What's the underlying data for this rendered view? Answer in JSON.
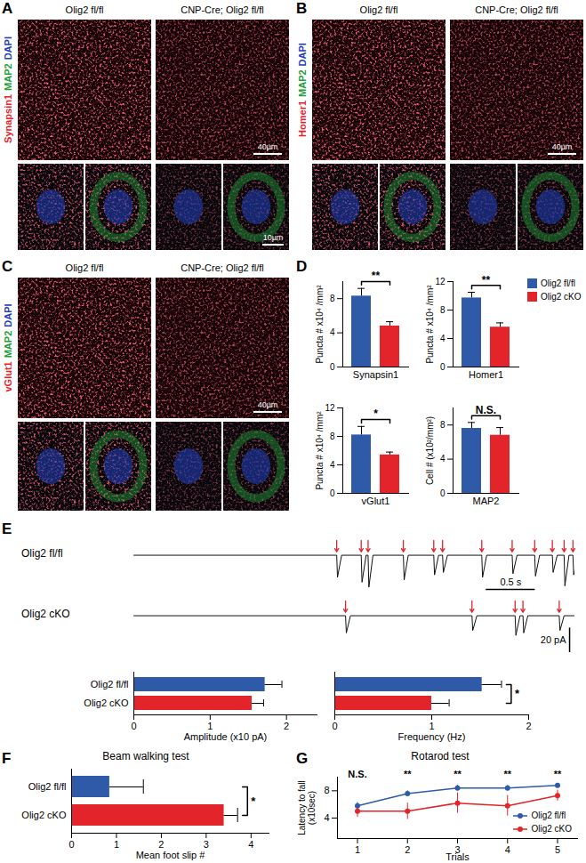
{
  "micrographs": [
    {
      "letter": "A",
      "stain": [
        {
          "text": "Synapsin1",
          "color": "#e8202a"
        },
        {
          "text": "MAP2",
          "color": "#1f9e3a"
        },
        {
          "text": "DAPI",
          "color": "#1f3fbf"
        }
      ],
      "columns": [
        "Olig2 fl/fl",
        "CNP-Cre; Olig2 fl/fl"
      ],
      "scale_bar": "40µm",
      "inset_scale_bar": "10µm"
    },
    {
      "letter": "B",
      "stain": [
        {
          "text": "Homer1",
          "color": "#e8202a"
        },
        {
          "text": "MAP2",
          "color": "#1f9e3a"
        },
        {
          "text": "DAPI",
          "color": "#1f3fbf"
        }
      ],
      "columns": [
        "Olig2 fl/fl",
        "CNP-Cre; Olig2 fl/fl"
      ],
      "scale_bar": "40µm"
    },
    {
      "letter": "C",
      "stain": [
        {
          "text": "vGlut1",
          "color": "#e8202a"
        },
        {
          "text": "MAP2",
          "color": "#1f9e3a"
        },
        {
          "text": "DAPI",
          "color": "#1f3fbf"
        }
      ],
      "columns": [
        "Olig2 fl/fl",
        "CNP-Cre; Olig2 fl/fl"
      ],
      "scale_bar": "40µm"
    }
  ],
  "chart_data": [
    {
      "type": "bar",
      "letter": "D",
      "xlabel": "Synapsin1",
      "ylabel": "Puncta # x10⁴ /mm²",
      "categories": [
        "Olig2 fl/fl",
        "Olig2 cKO"
      ],
      "values": [
        8.3,
        4.8
      ],
      "errors": [
        0.9,
        0.5
      ],
      "colors": [
        "#2e5aa8",
        "#e3242b"
      ],
      "ylim": [
        0,
        10
      ],
      "yticks": [
        0,
        4,
        8
      ],
      "tick_labels": "y",
      "significance": "**"
    },
    {
      "type": "bar",
      "xlabel": "Homer1",
      "ylabel": "Puncta # x10⁴ /mm²",
      "categories": [
        "Olig2 fl/fl",
        "Olig2 cKO"
      ],
      "values": [
        9.7,
        5.6
      ],
      "errors": [
        0.8,
        0.6
      ],
      "colors": [
        "#2e5aa8",
        "#e3242b"
      ],
      "ylim": [
        0,
        12
      ],
      "yticks": [
        0,
        4,
        8,
        12
      ],
      "tick_labels": "y",
      "significance": "**",
      "legend": "right"
    },
    {
      "type": "bar",
      "xlabel": "vGlut1",
      "ylabel": "Puncta # x10⁴ /mm²",
      "categories": [
        "Olig2 fl/fl",
        "Olig2 cKO"
      ],
      "values": [
        8.2,
        5.4
      ],
      "errors": [
        1.2,
        0.4
      ],
      "colors": [
        "#2e5aa8",
        "#e3242b"
      ],
      "ylim": [
        0,
        12
      ],
      "yticks": [
        0,
        4,
        8,
        12
      ],
      "tick_labels": "y",
      "significance": "*"
    },
    {
      "type": "bar",
      "xlabel": "MAP2",
      "ylabel": "Cell # (x10²/mm²)",
      "categories": [
        "Olig2 fl/fl",
        "Olig2 cKO"
      ],
      "values": [
        7.6,
        6.8
      ],
      "errors": [
        0.7,
        0.9
      ],
      "colors": [
        "#2e5aa8",
        "#e3242b"
      ],
      "ylim": [
        0,
        10
      ],
      "yticks": [
        0,
        4,
        8
      ],
      "tick_labels": "y",
      "significance": "N.S."
    },
    {
      "type": "trace",
      "letter": "E",
      "xlim": [
        0,
        4.5
      ],
      "ylim": [
        -30,
        12
      ],
      "tick_labels": false,
      "series": [
        {
          "name": "Olig2 fl/fl",
          "color": "#111111",
          "event_times": [
            2.07,
            2.32,
            2.39,
            2.75,
            3.06,
            3.15,
            3.55,
            3.86,
            4.09,
            4.27,
            4.39,
            4.48
          ],
          "event_amplitudes": [
            -18,
            -22,
            -26,
            -20,
            -16,
            -14,
            -18,
            -15,
            -17,
            -14,
            -25,
            -16
          ]
        },
        {
          "name": "Olig2 cKO",
          "color": "#111111",
          "event_times": [
            2.16,
            3.45,
            3.89,
            3.97,
            4.34
          ],
          "event_amplitudes": [
            -14,
            -12,
            -16,
            -14,
            -12
          ]
        }
      ],
      "scale_bars": [
        {
          "axis": "x",
          "value": 0.5,
          "label": "0.5 s"
        },
        {
          "axis": "y",
          "value": 20,
          "label": "20 pA"
        }
      ]
    },
    {
      "type": "bar",
      "orientation": "horizontal",
      "xlabel": "Amplitude (x10 pA)",
      "categories": [
        "Olig2 fl/fl",
        "Olig2 cKO"
      ],
      "values": [
        1.72,
        1.55
      ],
      "errors": [
        0.22,
        0.15
      ],
      "colors": [
        "#2e5aa8",
        "#e3242b"
      ],
      "xlim": [
        0,
        2.4
      ],
      "xticks": [
        0,
        1,
        2
      ]
    },
    {
      "type": "bar",
      "orientation": "horizontal",
      "xlabel": "Frequency (Hz)",
      "categories": [
        "Olig2 fl/fl",
        "Olig2 cKO"
      ],
      "values": [
        1.52,
        1.0
      ],
      "errors": [
        0.2,
        0.18
      ],
      "colors": [
        "#2e5aa8",
        "#e3242b"
      ],
      "xlim": [
        0,
        2
      ],
      "xticks": [
        0,
        1,
        2
      ],
      "tick_labels": "x",
      "significance": "*"
    },
    {
      "type": "bar",
      "letter": "F",
      "title": "Beam walking test",
      "orientation": "horizontal",
      "xlabel": "Mean foot slip #",
      "categories": [
        "Olig2 fl/fl",
        "Olig2 cKO"
      ],
      "values": [
        0.85,
        3.4
      ],
      "errors": [
        0.75,
        0.3
      ],
      "colors": [
        "#2e5aa8",
        "#e3242b"
      ],
      "xlim": [
        0,
        4.4
      ],
      "xticks": [
        0,
        1,
        2,
        3,
        4
      ],
      "significance": "*"
    },
    {
      "type": "line",
      "letter": "G",
      "title": "Rotarod test",
      "xlabel": "Trials",
      "ylabel": "Latency to fall (x10sec)",
      "x": [
        1,
        2,
        3,
        4,
        5
      ],
      "xlim": [
        0.6,
        5.4
      ],
      "xticks": [
        1,
        2,
        3,
        4,
        5
      ],
      "ylim": [
        1,
        10
      ],
      "yticks": [
        4,
        8
      ],
      "legend": "bottom-right",
      "series": [
        {
          "name": "Olig2 fl/fl",
          "color": "#2e5aa8",
          "marker": "circle",
          "values": [
            5.8,
            7.6,
            8.4,
            8.4,
            8.8
          ],
          "errors": [
            0.5,
            0.4,
            0.4,
            0.4,
            0.3
          ]
        },
        {
          "name": "Olig2 cKO",
          "color": "#e3242b",
          "marker": "circle",
          "values": [
            5.0,
            5.0,
            6.2,
            5.8,
            7.3
          ],
          "errors": [
            0.9,
            1.2,
            1.5,
            1.5,
            0.8
          ]
        }
      ],
      "annotations": [
        {
          "x": 1,
          "text": "N.S."
        },
        {
          "x": 2,
          "text": "**"
        },
        {
          "x": 3,
          "text": "**"
        },
        {
          "x": 4,
          "text": "**"
        },
        {
          "x": 5,
          "text": "**"
        }
      ]
    }
  ]
}
